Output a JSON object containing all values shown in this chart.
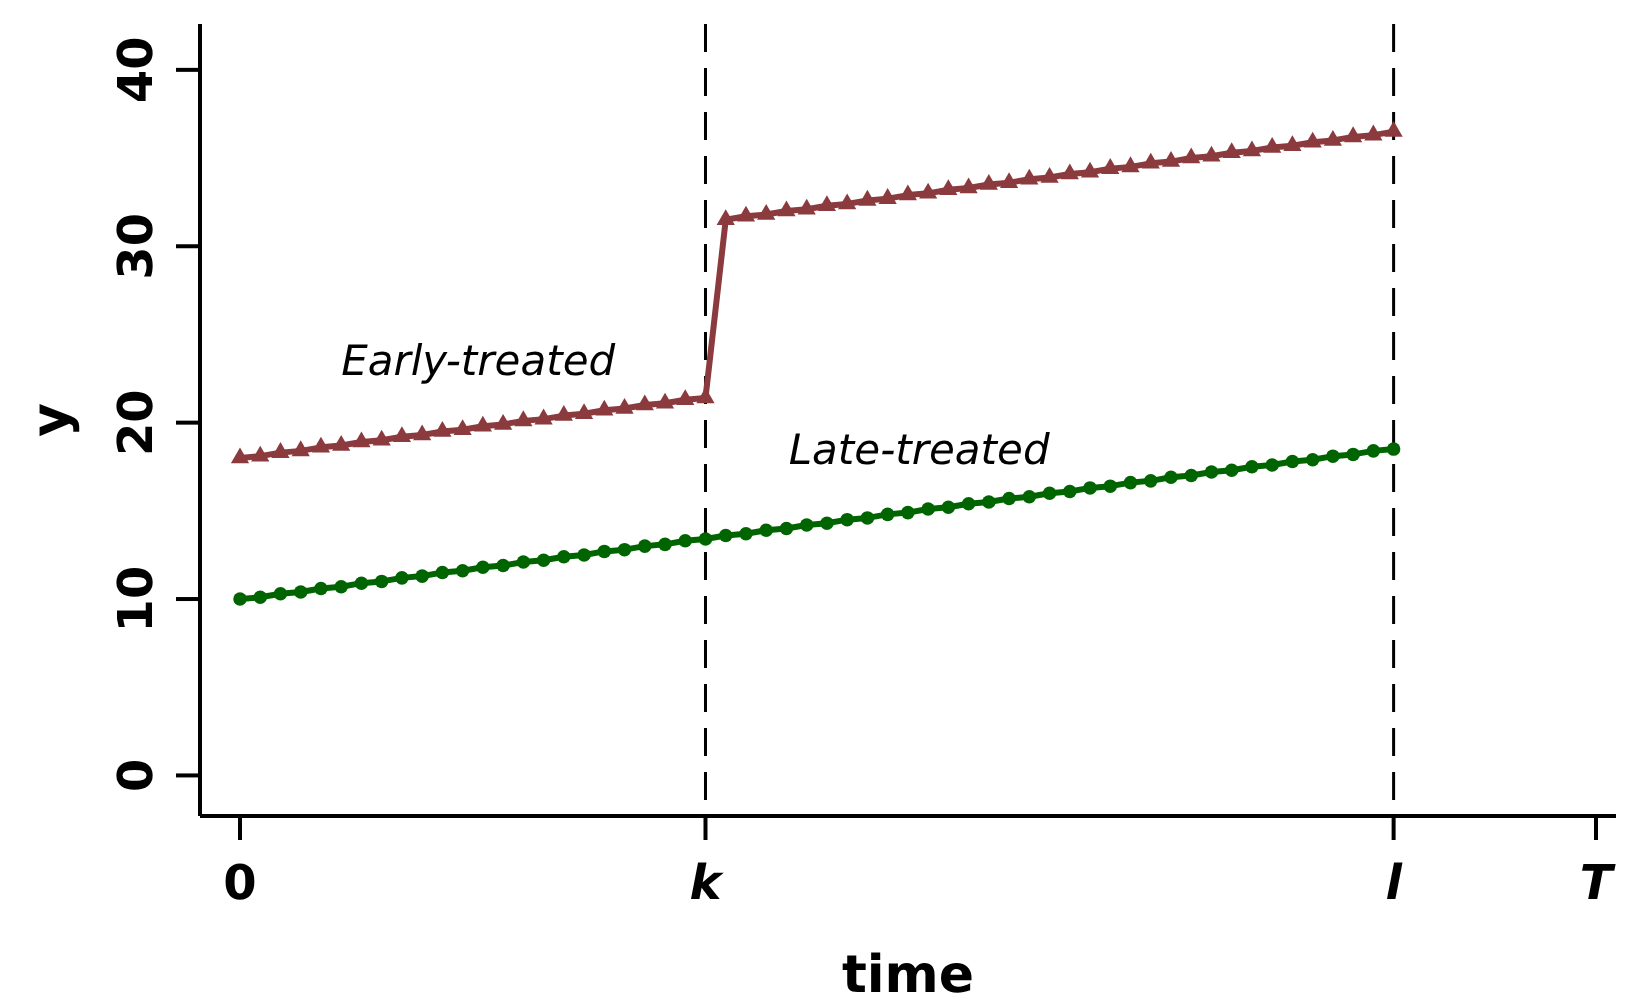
{
  "chart_data": {
    "type": "line",
    "xlabel": "time",
    "ylabel": "y",
    "categories": [
      "0",
      null,
      null,
      null,
      null,
      null,
      null,
      null,
      null,
      null,
      null,
      null,
      null,
      null,
      null,
      null,
      null,
      null,
      null,
      null,
      null,
      null,
      null,
      "k",
      null,
      null,
      null,
      null,
      null,
      null,
      null,
      null,
      null,
      null,
      null,
      null,
      null,
      null,
      null,
      null,
      null,
      null,
      null,
      null,
      null,
      null,
      null,
      null,
      null,
      null,
      null,
      null,
      null,
      null,
      null,
      null,
      null,
      "l",
      null,
      null,
      null,
      null,
      null,
      null,
      null,
      null,
      null,
      "T"
    ],
    "ylim": [
      -2.3,
      42.6
    ],
    "yticks": [
      0,
      10,
      20,
      30,
      40
    ],
    "grid": false,
    "legend": false,
    "line_style": "solid",
    "series": [
      {
        "name": "Early-treated",
        "color": "#8b3a3e",
        "marker": "triangle",
        "values": [
          18.0,
          18.1,
          18.3,
          18.4,
          18.6,
          18.7,
          18.9,
          19.0,
          19.2,
          19.3,
          19.5,
          19.6,
          19.8,
          19.9,
          20.1,
          20.2,
          20.4,
          20.5,
          20.7,
          20.8,
          21.0,
          21.1,
          21.3,
          21.4,
          31.5,
          31.7,
          31.8,
          32.0,
          32.1,
          32.3,
          32.4,
          32.6,
          32.7,
          32.9,
          33.0,
          33.2,
          33.3,
          33.5,
          33.6,
          33.8,
          33.9,
          34.1,
          34.2,
          34.4,
          34.5,
          34.7,
          34.8,
          35.0,
          35.1,
          35.3,
          35.4,
          35.6,
          35.7,
          35.9,
          36.0,
          36.2,
          36.3,
          36.5,
          null,
          null,
          null,
          null,
          null,
          null,
          null,
          null,
          null,
          null
        ]
      },
      {
        "name": "Late-treated",
        "color": "#006400",
        "marker": "circle",
        "values": [
          10.0,
          10.1,
          10.3,
          10.4,
          10.6,
          10.7,
          10.9,
          11.0,
          11.2,
          11.3,
          11.5,
          11.6,
          11.8,
          11.9,
          12.1,
          12.2,
          12.4,
          12.5,
          12.7,
          12.8,
          13.0,
          13.1,
          13.3,
          13.4,
          13.6,
          13.7,
          13.9,
          14.0,
          14.2,
          14.3,
          14.5,
          14.6,
          14.8,
          14.9,
          15.1,
          15.2,
          15.4,
          15.5,
          15.7,
          15.8,
          16.0,
          16.1,
          16.3,
          16.4,
          16.6,
          16.7,
          16.9,
          17.0,
          17.2,
          17.3,
          17.5,
          17.6,
          17.8,
          17.9,
          18.1,
          18.2,
          18.4,
          18.5,
          null,
          null,
          null,
          null,
          null,
          null,
          null,
          null,
          null,
          null
        ]
      }
    ],
    "ref_lines": [
      {
        "axis": "x",
        "value": "k",
        "line_style": "dashed"
      },
      {
        "axis": "x",
        "value": "l",
        "line_style": "dashed"
      }
    ]
  }
}
